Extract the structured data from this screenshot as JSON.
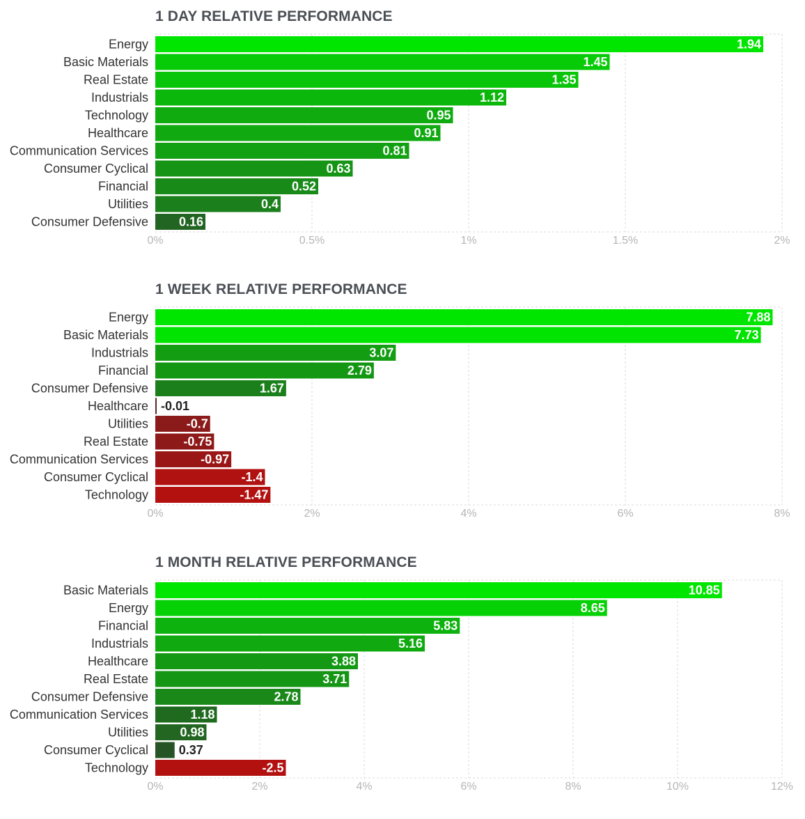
{
  "colors": {
    "pos_strong": "#00e600",
    "pos_weak": "#2c3e2c",
    "neg_weak": "#5a2626",
    "neg_strong": "#b31010",
    "title": "#4a4f55",
    "grid": "#d9d9d9",
    "tick": "#b5b5b5"
  },
  "chart_data": [
    {
      "type": "bar",
      "orientation": "horizontal",
      "title": "1 DAY RELATIVE PERFORMANCE",
      "categories": [
        "Energy",
        "Basic Materials",
        "Real Estate",
        "Industrials",
        "Technology",
        "Healthcare",
        "Communication Services",
        "Consumer Cyclical",
        "Financial",
        "Utilities",
        "Consumer Defensive"
      ],
      "values": [
        1.94,
        1.45,
        1.35,
        1.12,
        0.95,
        0.91,
        0.81,
        0.63,
        0.52,
        0.4,
        0.16
      ],
      "value_labels": [
        "1.94",
        "1.45",
        "1.35",
        "1.12",
        "0.95",
        "0.91",
        "0.81",
        "0.63",
        "0.52",
        "0.4",
        "0.16"
      ],
      "xlim": [
        0,
        2
      ],
      "ticks": [
        0,
        0.5,
        1,
        1.5,
        2
      ],
      "tick_labels": [
        "0%",
        "0.5%",
        "1%",
        "1.5%",
        "2%"
      ],
      "grid": true
    },
    {
      "type": "bar",
      "orientation": "horizontal",
      "title": "1 WEEK RELATIVE PERFORMANCE",
      "categories": [
        "Energy",
        "Basic Materials",
        "Industrials",
        "Financial",
        "Consumer Defensive",
        "Healthcare",
        "Utilities",
        "Real Estate",
        "Communication Services",
        "Consumer Cyclical",
        "Technology"
      ],
      "values": [
        7.88,
        7.73,
        3.07,
        2.79,
        1.67,
        -0.01,
        -0.7,
        -0.75,
        -0.97,
        -1.4,
        -1.47
      ],
      "value_labels": [
        "7.88",
        "7.73",
        "3.07",
        "2.79",
        "1.67",
        "-0.01",
        "-0.7",
        "-0.75",
        "-0.97",
        "-1.4",
        "-1.47"
      ],
      "xlim": [
        0,
        8
      ],
      "ticks": [
        0,
        2,
        4,
        6,
        8
      ],
      "tick_labels": [
        "0%",
        "2%",
        "4%",
        "6%",
        "8%"
      ],
      "grid": true
    },
    {
      "type": "bar",
      "orientation": "horizontal",
      "title": "1 MONTH RELATIVE PERFORMANCE",
      "categories": [
        "Basic Materials",
        "Energy",
        "Financial",
        "Industrials",
        "Healthcare",
        "Real Estate",
        "Consumer Defensive",
        "Communication Services",
        "Utilities",
        "Consumer Cyclical",
        "Technology"
      ],
      "values": [
        10.85,
        8.65,
        5.83,
        5.16,
        3.88,
        3.71,
        2.78,
        1.18,
        0.98,
        0.37,
        -2.5
      ],
      "value_labels": [
        "10.85",
        "8.65",
        "5.83",
        "5.16",
        "3.88",
        "3.71",
        "2.78",
        "1.18",
        "0.98",
        "0.37",
        "-2.5"
      ],
      "xlim": [
        0,
        12
      ],
      "ticks": [
        0,
        2,
        4,
        6,
        8,
        10,
        12
      ],
      "tick_labels": [
        "0%",
        "2%",
        "4%",
        "6%",
        "8%",
        "10%",
        "12%"
      ],
      "grid": true
    }
  ]
}
